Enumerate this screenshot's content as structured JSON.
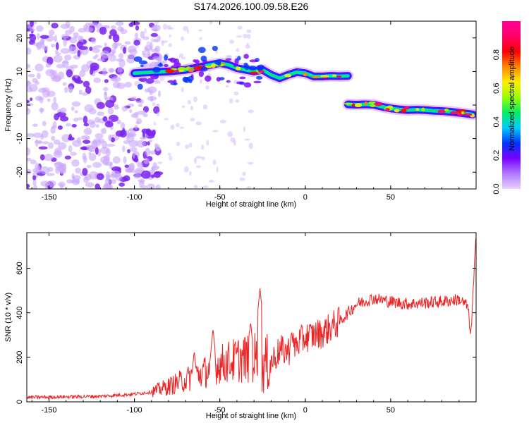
{
  "title": "S174.2026.100.09.58.E26",
  "colors": {
    "snr_line": "#ee2222",
    "spectrogram_blob": "#7b2cf5",
    "colorbar_stops": [
      "#e8d0ff",
      "#b07aff",
      "#7a00ff",
      "#0033ff",
      "#00ccff",
      "#00ee66",
      "#99ff00",
      "#ffee00",
      "#ff8800",
      "#ff0000",
      "#ff0066",
      "#ff0099"
    ]
  },
  "chart_data": [
    {
      "type": "heatmap",
      "title": "S174.2026.100.09.58.E26",
      "xlabel": "Height of straight line (km)",
      "ylabel": "Frequency (Hz)",
      "xlim": [
        -163,
        100
      ],
      "ylim": [
        -25,
        25
      ],
      "xticks": [
        -150,
        -100,
        -50,
        0,
        50
      ],
      "yticks": [
        -20,
        -10,
        0,
        10,
        20
      ],
      "colorbar": {
        "label": "Normalized spectral amplitude",
        "range": [
          0,
          1
        ],
        "ticks": [
          "0.0",
          "0.2",
          "0.4",
          "0.6",
          "0.8"
        ]
      },
      "ridges": [
        {
          "name": "upper ridge",
          "x": [
            -100,
            -90,
            -80,
            -70,
            -60,
            -50,
            -45,
            -40,
            -35,
            -30,
            -25,
            -20,
            -15,
            -10,
            -5,
            0,
            5,
            10,
            15,
            20,
            25
          ],
          "y": [
            9.5,
            9.8,
            10,
            10.5,
            11.5,
            12.5,
            12,
            11,
            10.5,
            10,
            10.5,
            9,
            8,
            9,
            9.8,
            9.5,
            8.5,
            8.5,
            8.7,
            8.6,
            8.7
          ]
        },
        {
          "name": "lower ridge",
          "x": [
            25,
            30,
            35,
            40,
            45,
            50,
            55,
            60,
            65,
            70,
            75,
            80,
            85,
            90,
            95,
            98
          ],
          "y": [
            0.2,
            0.1,
            0.2,
            0.1,
            -0.5,
            -1,
            -1.3,
            -1.5,
            -1.4,
            -1.5,
            -1.7,
            -1.8,
            -2,
            -2.3,
            -2.6,
            -2.8
          ]
        }
      ],
      "noise_region_x": [
        -163,
        -100
      ]
    },
    {
      "type": "line",
      "xlabel": "Height of straight line (km)",
      "ylabel": "SNR (10 * v/v)",
      "xlim": [
        -163,
        100
      ],
      "ylim": [
        0,
        760
      ],
      "xticks": [
        -150,
        -100,
        -50,
        0,
        50
      ],
      "yticks": [
        0,
        200,
        400,
        600
      ],
      "series": [
        {
          "name": "SNR",
          "trend_x": [
            -163,
            -120,
            -100,
            -90,
            -80,
            -70,
            -60,
            -50,
            -40,
            -30,
            -25,
            -20,
            -15,
            -10,
            -5,
            0,
            10,
            20,
            30,
            40,
            50,
            60,
            70,
            80,
            90,
            95,
            97,
            99,
            100
          ],
          "trend_y": [
            20,
            25,
            35,
            45,
            70,
            100,
            130,
            170,
            190,
            200,
            160,
            180,
            230,
            230,
            260,
            290,
            310,
            360,
            440,
            465,
            450,
            440,
            445,
            450,
            460,
            430,
            300,
            600,
            740
          ],
          "peaks": [
            {
              "x": -26.5,
              "y": 510
            },
            {
              "x": -54,
              "y": 330
            },
            {
              "x": -32,
              "y": 360
            },
            {
              "x": -65,
              "y": 230
            },
            {
              "x": -8,
              "y": 320
            }
          ]
        }
      ]
    }
  ]
}
